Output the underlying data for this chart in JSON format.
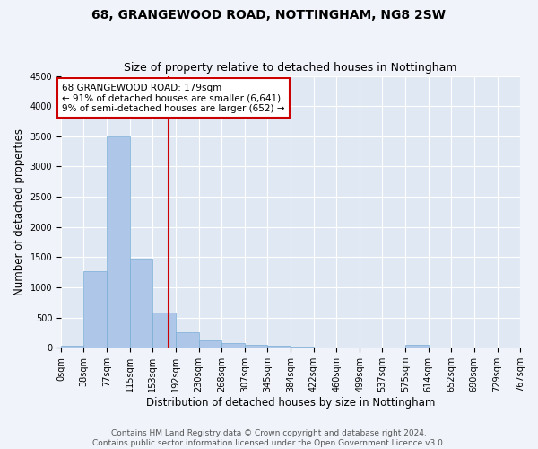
{
  "title": "68, GRANGEWOOD ROAD, NOTTINGHAM, NG8 2SW",
  "subtitle": "Size of property relative to detached houses in Nottingham",
  "xlabel": "Distribution of detached houses by size in Nottingham",
  "ylabel": "Number of detached properties",
  "bin_edges": [
    0,
    38,
    77,
    115,
    153,
    192,
    230,
    268,
    307,
    345,
    384,
    422,
    460,
    499,
    537,
    575,
    614,
    652,
    690,
    729,
    767
  ],
  "bar_heights": [
    35,
    1270,
    3490,
    1480,
    580,
    250,
    120,
    75,
    45,
    30,
    20,
    10,
    5,
    0,
    0,
    50,
    0,
    0,
    0,
    0
  ],
  "bar_color": "#aec6e8",
  "bar_edge_color": "#7aadd4",
  "subject_size": 179,
  "subject_line_color": "#cc0000",
  "annotation_line1": "68 GRANGEWOOD ROAD: 179sqm",
  "annotation_line2": "← 91% of detached houses are smaller (6,641)",
  "annotation_line3": "9% of semi-detached houses are larger (652) →",
  "annotation_box_color": "#cc0000",
  "ylim": [
    0,
    4500
  ],
  "yticks": [
    0,
    500,
    1000,
    1500,
    2000,
    2500,
    3000,
    3500,
    4000,
    4500
  ],
  "footer_text": "Contains HM Land Registry data © Crown copyright and database right 2024.\nContains public sector information licensed under the Open Government Licence v3.0.",
  "bg_color": "#f0f4fa",
  "plot_bg_color": "#e0e8f4",
  "grid_color": "#ffffff",
  "title_fontsize": 10,
  "subtitle_fontsize": 9,
  "axis_label_fontsize": 8.5,
  "tick_fontsize": 7,
  "annotation_fontsize": 7.5,
  "footer_fontsize": 6.5
}
